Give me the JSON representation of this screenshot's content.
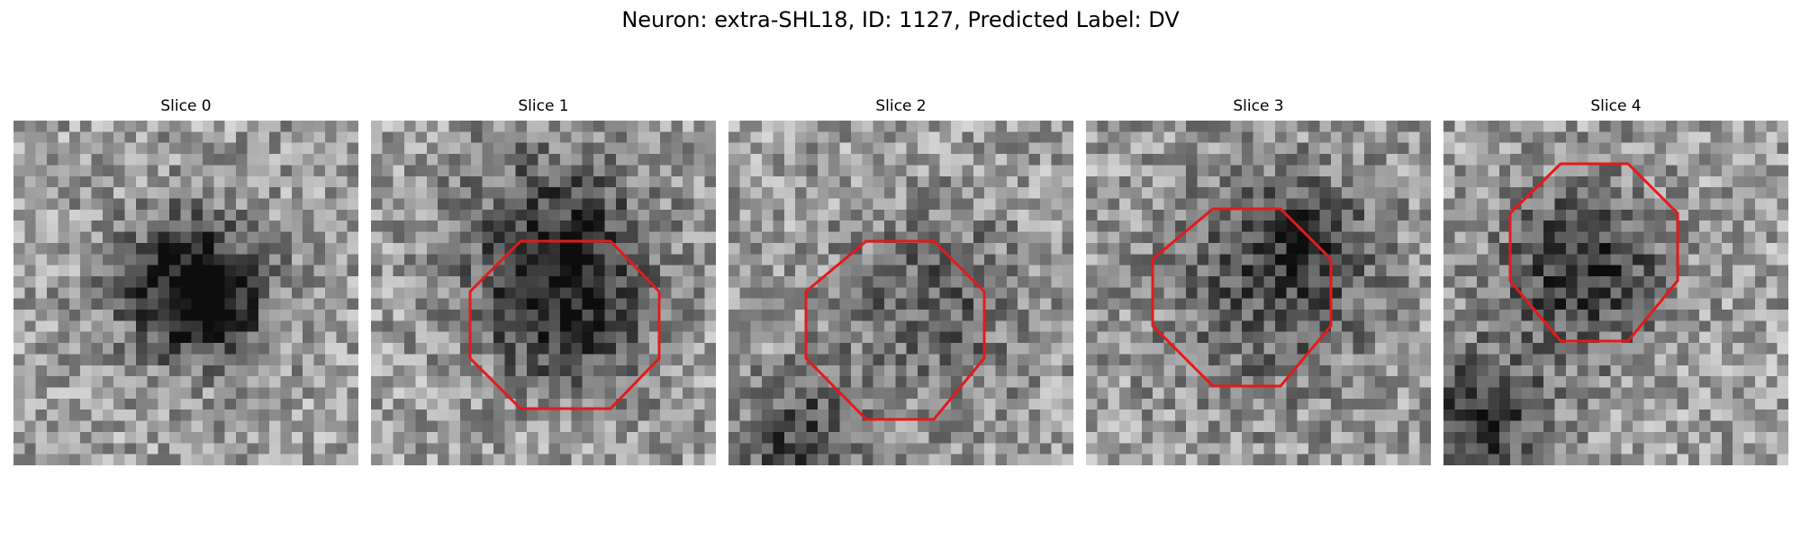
{
  "figure": {
    "title": "Neuron: extra-SHL18, ID: 1127, Predicted Label: DV",
    "roi_color": "#e31a1c",
    "slices": [
      {
        "label": "Slice 0",
        "has_roi": false
      },
      {
        "label": "Slice 1",
        "has_roi": true
      },
      {
        "label": "Slice 2",
        "has_roi": true
      },
      {
        "label": "Slice 3",
        "has_roi": true
      },
      {
        "label": "Slice 4",
        "has_roi": true
      }
    ]
  }
}
